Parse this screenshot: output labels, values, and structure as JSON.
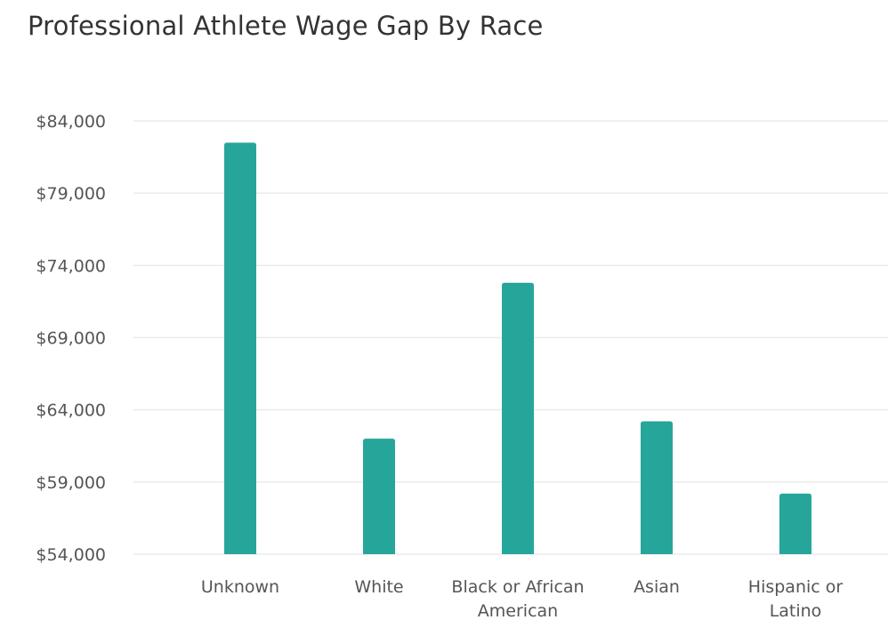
{
  "chart_data": {
    "type": "bar",
    "title": "Professional Athlete Wage Gap By Race",
    "xlabel": "",
    "ylabel": "",
    "ylim": [
      54000,
      84000
    ],
    "yticks": [
      54000,
      59000,
      64000,
      69000,
      74000,
      79000,
      84000
    ],
    "ytick_labels": [
      "$54,000",
      "$59,000",
      "$64,000",
      "$69,000",
      "$74,000",
      "$79,000",
      "$84,000"
    ],
    "categories": [
      "Unknown",
      "White",
      "Black or African American",
      "Asian",
      "Hispanic or Latino"
    ],
    "category_label_lines": [
      [
        "Unknown"
      ],
      [
        "White"
      ],
      [
        "Black or African",
        "American"
      ],
      [
        "Asian"
      ],
      [
        "Hispanic or",
        "Latino"
      ]
    ],
    "values": [
      82500,
      62000,
      72800,
      63200,
      58200
    ],
    "bar_color": "#26a69a",
    "grid_color": "#ebebeb",
    "grid": true
  }
}
